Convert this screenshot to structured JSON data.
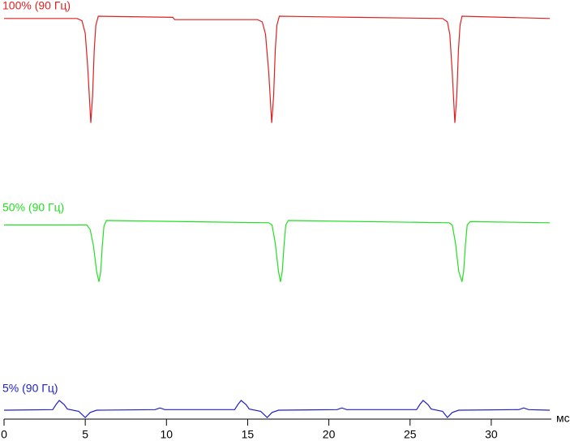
{
  "chart_data": [
    {
      "type": "line",
      "title": "100% (90 Гц)",
      "color": "#e02020",
      "xlim": [
        0,
        33.7
      ],
      "ylim": [
        0,
        100
      ],
      "x": [
        0,
        4.5,
        4.8,
        5.0,
        5.15,
        5.34,
        5.45,
        5.55,
        5.65,
        5.8,
        10.4,
        10.5,
        15.6,
        15.9,
        16.1,
        16.3,
        16.48,
        16.6,
        16.7,
        16.8,
        16.95,
        21.6,
        27.0,
        27.3,
        27.45,
        27.6,
        27.76,
        27.88,
        27.98,
        28.08,
        28.2,
        33.6
      ],
      "values": [
        98,
        98,
        96,
        85,
        55,
        6,
        30,
        70,
        92,
        100,
        99,
        97,
        97,
        95,
        84,
        50,
        6,
        30,
        70,
        92,
        100,
        99,
        98,
        95,
        84,
        50,
        6,
        30,
        70,
        92,
        100,
        98
      ]
    },
    {
      "type": "line",
      "title": "50% (90 Гц)",
      "color": "#22e022",
      "xlim": [
        0,
        33.7
      ],
      "ylim": [
        0,
        100
      ],
      "x": [
        0,
        5.1,
        5.3,
        5.5,
        5.7,
        5.84,
        5.95,
        6.05,
        6.15,
        6.3,
        16.3,
        16.5,
        16.7,
        16.9,
        17.02,
        17.13,
        17.25,
        17.35,
        17.5,
        27.4,
        27.6,
        27.8,
        28.0,
        28.2,
        28.3,
        28.42,
        28.52,
        28.7,
        33.6
      ],
      "values": [
        96,
        96,
        92,
        78,
        55,
        46,
        55,
        78,
        95,
        100,
        98,
        96,
        80,
        55,
        46,
        55,
        80,
        96,
        100,
        98,
        96,
        80,
        55,
        46,
        55,
        80,
        96,
        99,
        98
      ]
    },
    {
      "type": "line",
      "title": "5% (90 Гц)",
      "color": "#2020c0",
      "xlim": [
        0,
        33.7
      ],
      "ylim": [
        0,
        100
      ],
      "x": [
        0,
        3.0,
        3.2,
        3.4,
        3.7,
        3.9,
        4.6,
        5.0,
        5.3,
        5.7,
        9.3,
        9.6,
        9.9,
        14.2,
        14.4,
        14.6,
        14.9,
        15.1,
        15.8,
        16.2,
        16.5,
        16.9,
        20.5,
        20.8,
        21.1,
        25.4,
        25.6,
        25.8,
        26.1,
        26.3,
        27.0,
        27.3,
        27.6,
        28.0,
        31.7,
        32.0,
        32.3,
        33.6
      ],
      "values": [
        10,
        10.5,
        15,
        18.6,
        15,
        11,
        9,
        3.6,
        8,
        10,
        10.5,
        12,
        10.5,
        10.5,
        15,
        18.6,
        15,
        11,
        9,
        3.6,
        8,
        10,
        10.5,
        12,
        10.5,
        10.5,
        15,
        18.6,
        15,
        11,
        9,
        3.6,
        8,
        10,
        10.5,
        12,
        10.5,
        10
      ],
      "xticks": [
        0,
        5,
        10,
        15,
        20,
        25,
        30
      ],
      "x_label": "мс"
    }
  ]
}
